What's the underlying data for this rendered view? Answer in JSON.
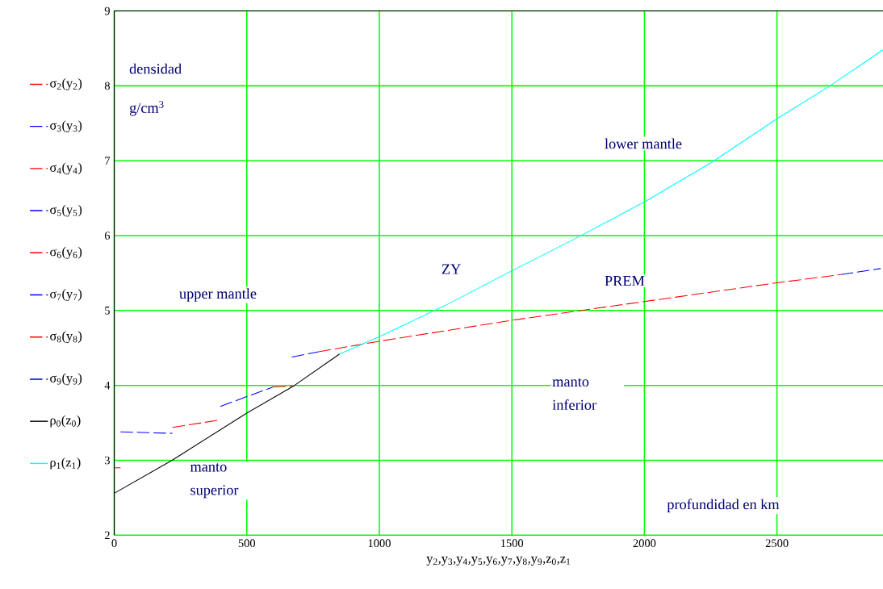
{
  "chart_data": {
    "type": "line",
    "xlabel": "y$_{2}$,y$_{3}$,y$_{4}$,y$_{5}$,y$_{6}$,y$_{7}$,y$_{8}$,y$_{9}$,z$_{0}$,z$_{1}$",
    "xlim": [
      0,
      2900
    ],
    "xticks": [
      0,
      500,
      1000,
      1500,
      2000,
      2500
    ],
    "ylim": [
      2,
      9
    ],
    "yticks": [
      2,
      3,
      4,
      5,
      6,
      7,
      8,
      9
    ],
    "grid": true,
    "legend": "left",
    "annotations": [
      "densidad",
      "g/cm$^{3}$",
      "upper mantle",
      "ZY",
      "lower mantle",
      "PREM",
      "manto inferior",
      "manto superior",
      "profundidad en km"
    ],
    "series": [
      {
        "name": "σ$_{2}$(y$_{2}$)",
        "color": "#ff0000",
        "line_style": "dashed",
        "x": [
          0,
          24
        ],
        "values": [
          2.9,
          2.9
        ]
      },
      {
        "name": "σ$_{3}$(y$_{3}$)",
        "color": "#0000ff",
        "line_style": "dashed",
        "x": [
          24,
          220
        ],
        "values": [
          3.38,
          3.36
        ]
      },
      {
        "name": "σ$_{4}$(y$_{4}$)",
        "color": "#ff0000",
        "line_style": "dashed",
        "x": [
          220,
          400
        ],
        "values": [
          3.44,
          3.54
        ]
      },
      {
        "name": "σ$_{5}$(y$_{5}$)",
        "color": "#0000ff",
        "line_style": "dashed",
        "x": [
          400,
          600
        ],
        "values": [
          3.72,
          3.98
        ]
      },
      {
        "name": "σ$_{6}$(y$_{6}$)",
        "color": "#ff0000",
        "line_style": "dashed",
        "x": [
          600,
          670
        ],
        "values": [
          3.98,
          3.99
        ]
      },
      {
        "name": "σ$_{7}$(y$_{7}$)",
        "color": "#0000ff",
        "line_style": "dashed",
        "x": [
          670,
          771
        ],
        "values": [
          4.38,
          4.45
        ]
      },
      {
        "name": "σ$_{8}$(y$_{8}$)",
        "color": "#ff0000",
        "line_style": "dashed",
        "x": [
          771,
          1000,
          1500,
          2000,
          2500,
          2741
        ],
        "values": [
          4.45,
          4.59,
          4.87,
          5.12,
          5.37,
          5.48
        ]
      },
      {
        "name": "σ$_{9}$(y$_{9}$)",
        "color": "#0000ff",
        "line_style": "dashed",
        "x": [
          2741,
          2891
        ],
        "values": [
          5.48,
          5.56
        ]
      },
      {
        "name": "ρ$_{0}$(z$_{0}$)",
        "color": "#000000",
        "line_style": "solid",
        "x": [
          0,
          218,
          500,
          680,
          850
        ],
        "values": [
          2.56,
          3.0,
          3.63,
          4.0,
          4.42
        ]
      },
      {
        "name": "ρ$_{1}$(z$_{1}$)",
        "color": "#00ffff",
        "line_style": "solid",
        "x": [
          850,
          1000,
          1250,
          1500,
          1750,
          2000,
          2250,
          2500,
          2700,
          2900
        ],
        "values": [
          4.42,
          4.65,
          5.07,
          5.53,
          5.98,
          6.45,
          6.97,
          7.56,
          8.0,
          8.48
        ]
      }
    ]
  }
}
